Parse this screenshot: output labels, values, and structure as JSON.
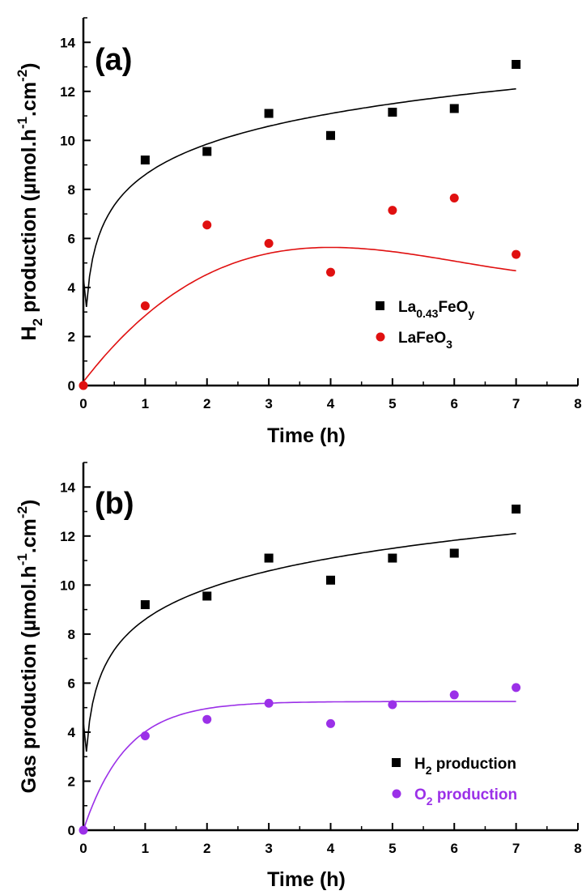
{
  "chart_data": [
    {
      "type": "scatter",
      "panel_label": "(a)",
      "xlabel": "Time (h)",
      "ylabel": "H2 production (µmol.h-1.cm-2)",
      "ylabel_parts": {
        "pre": "H",
        "sub": "2",
        "mid": " production (µmol.h",
        "sup1": "-1",
        "mid2": ".cm",
        "sup2": "-2",
        "post": ")"
      },
      "xlim": [
        0,
        8
      ],
      "ylim": [
        0,
        15
      ],
      "xticks": [
        "0",
        "1",
        "2",
        "3",
        "4",
        "5",
        "6",
        "7",
        "8"
      ],
      "yticks": [
        "0",
        "2",
        "4",
        "6",
        "8",
        "10",
        "12",
        "14"
      ],
      "grid": false,
      "legend_position": "lower-right",
      "series": [
        {
          "name": "La0.43FeOy",
          "name_parts": {
            "pre": "La",
            "sub": "0.43",
            "mid": "FeO",
            "sub2": "y"
          },
          "marker": "square",
          "color": "#000000",
          "x": [
            1,
            2,
            3,
            4,
            5,
            6,
            7
          ],
          "y": [
            9.2,
            9.55,
            11.1,
            10.2,
            11.15,
            11.3,
            13.1
          ],
          "fit": {
            "kind": "log",
            "x0": 0.05,
            "y_at_x0": 4.4,
            "params": {
              "a": 8.6,
              "b": 1.8
            }
          }
        },
        {
          "name": "LaFeO3",
          "name_parts": {
            "pre": "LaFeO",
            "sub": "3"
          },
          "marker": "circle",
          "color": "#e01010",
          "x": [
            0,
            1,
            2,
            3,
            4,
            5,
            6,
            7
          ],
          "y": [
            0,
            3.25,
            6.55,
            5.8,
            4.62,
            7.15,
            7.65,
            5.35
          ],
          "fit": {
            "kind": "poly",
            "params": {
              "c0": 0.15,
              "c1": 3.28,
              "c2": -0.612,
              "c3": 0.0337
            }
          }
        }
      ]
    },
    {
      "type": "scatter",
      "panel_label": "(b)",
      "xlabel": "Time (h)",
      "ylabel": "Gas production (µmol.h-1.cm-2)",
      "ylabel_parts": {
        "pre": "Gas production (µmol.h",
        "sup1": "-1",
        "mid2": ".cm",
        "sup2": "-2",
        "post": ")"
      },
      "xlim": [
        0,
        8
      ],
      "ylim": [
        0,
        15
      ],
      "xticks": [
        "0",
        "1",
        "2",
        "3",
        "4",
        "5",
        "6",
        "7",
        "8"
      ],
      "yticks": [
        "0",
        "2",
        "4",
        "6",
        "8",
        "10",
        "12",
        "14"
      ],
      "grid": false,
      "legend_position": "lower-right",
      "series": [
        {
          "name": "H2 production",
          "name_parts": {
            "pre": "H",
            "sub": "2",
            "mid": " production"
          },
          "marker": "square",
          "color": "#000000",
          "x": [
            1,
            2,
            3,
            4,
            5,
            6,
            7
          ],
          "y": [
            9.2,
            9.55,
            11.1,
            10.2,
            11.1,
            11.3,
            13.1
          ],
          "fit": {
            "kind": "log",
            "x0": 0.05,
            "y_at_x0": 4.4,
            "params": {
              "a": 8.6,
              "b": 1.8
            }
          }
        },
        {
          "name": "O2 production",
          "name_parts": {
            "pre": "O",
            "sub": "2",
            "mid": " production"
          },
          "marker": "circle",
          "color": "#9b30e8",
          "x": [
            0,
            1,
            2,
            3,
            4,
            5,
            6,
            7
          ],
          "y": [
            0,
            3.85,
            4.52,
            5.18,
            4.35,
            5.12,
            5.52,
            5.82
          ],
          "fit": {
            "kind": "exp",
            "params": {
              "A": 5.25,
              "k": 1.45
            }
          }
        }
      ]
    }
  ]
}
